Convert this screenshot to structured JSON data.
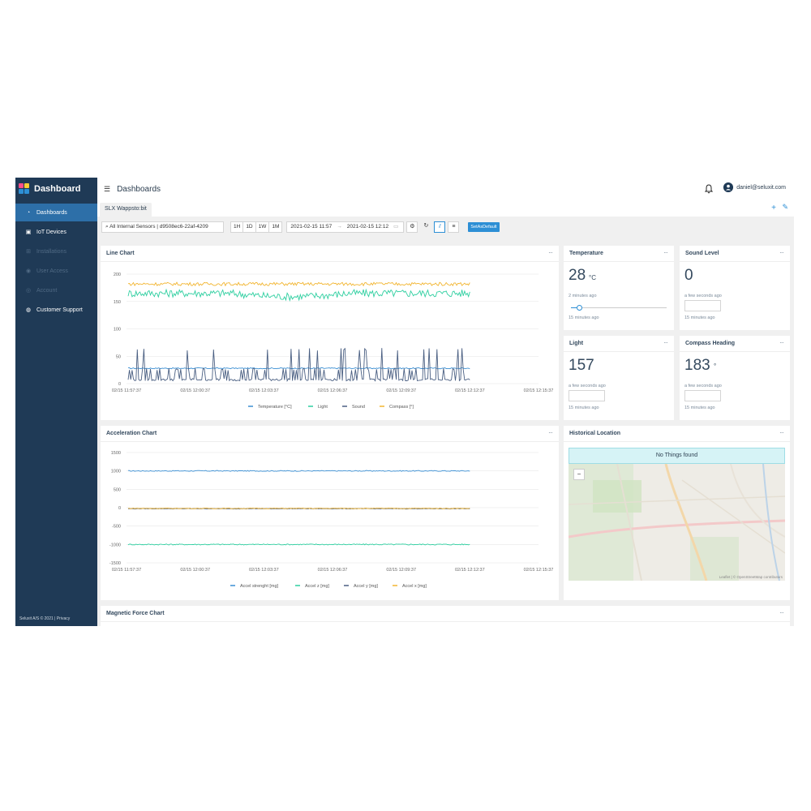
{
  "sidebar": {
    "title": "Dashboard",
    "items": [
      {
        "label": "Dashboards",
        "icon": "dashboard-icon",
        "state": "active"
      },
      {
        "label": "IoT Devices",
        "icon": "device-icon",
        "state": "normal"
      },
      {
        "label": "Installations",
        "icon": "grid-icon",
        "state": "disabled"
      },
      {
        "label": "User Access",
        "icon": "user-icon",
        "state": "disabled"
      },
      {
        "label": "Account",
        "icon": "account-icon",
        "state": "disabled"
      },
      {
        "label": "Customer Support",
        "icon": "globe-icon",
        "state": "normal"
      }
    ],
    "footer": "Seluxit A/S © 2021 | Privacy"
  },
  "header": {
    "title": "Dashboards",
    "user_email": "daniel@seluxit.com"
  },
  "tabs": [
    {
      "label": "SLX Wappsto:bit"
    }
  ],
  "toolbar": {
    "sensor_select": "All Internal Sensors | d9508ec6-22af-4209",
    "ranges": [
      "1H",
      "1D",
      "1W",
      "1M"
    ],
    "date_from": "2021-02-15 11:57",
    "date_arrow": "→",
    "date_to": "2021-02-15 12:12",
    "set_default": "SetAsDefault"
  },
  "colors": {
    "temperature": "#3b8fd3",
    "light": "#2ecfa0",
    "sound": "#4a5f82",
    "compass": "#f2b530",
    "accel_strength": "#3b8fd3",
    "accel_z": "#2ecfa0",
    "accel_y": "#4a5f82",
    "accel_x": "#f2b530"
  },
  "cards": {
    "line_chart": {
      "title": "Line Chart",
      "menu": "···"
    },
    "temperature": {
      "title": "Temperature",
      "menu": "···",
      "value": "28",
      "unit": "°C",
      "updated": "2 minutes ago",
      "range_label": "15 minutes ago"
    },
    "sound_level": {
      "title": "Sound Level",
      "menu": "···",
      "value": "0",
      "updated": "a few seconds ago",
      "range_label": "15 minutes ago"
    },
    "light": {
      "title": "Light",
      "menu": "···",
      "value": "157",
      "updated": "a few seconds ago",
      "range_label": "15 minutes ago"
    },
    "compass": {
      "title": "Compass Heading",
      "menu": "···",
      "value": "183",
      "unit": "°",
      "updated": "a few seconds ago",
      "range_label": "15 minutes ago"
    },
    "acceleration_chart": {
      "title": "Acceleration Chart",
      "menu": "···"
    },
    "historical_location": {
      "title": "Historical Location",
      "menu": "···",
      "notice": "No Things found",
      "attribution": "Leaflet | © OpenStreetMap contributors",
      "zoom_out": "−"
    },
    "magnetic_chart": {
      "title": "Magnetic Force Chart",
      "menu": "···"
    }
  },
  "chart_data": [
    {
      "type": "line",
      "x_ticks": [
        "02/15 11:57:37",
        "02/15 12:00:37",
        "02/15 12:03:37",
        "02/15 12:06:37",
        "02/15 12:09:37",
        "02/15 12:12:37",
        "02/15 12:15:37"
      ],
      "y_ticks": [
        0,
        50,
        100,
        150,
        200
      ],
      "ylim": [
        0,
        200
      ],
      "series": [
        {
          "name": "Temperature [°C]",
          "level": 28
        },
        {
          "name": "Light",
          "level": 165
        },
        {
          "name": "Sound",
          "level": 10
        },
        {
          "name": "Compass [°]",
          "level": 182
        }
      ]
    },
    {
      "type": "line",
      "x_ticks": [
        "02/15 11:57:37",
        "02/15 12:00:37",
        "02/15 12:03:37",
        "02/15 12:06:37",
        "02/15 12:09:37",
        "02/15 12:12:37",
        "02/15 12:15:37"
      ],
      "y_ticks": [
        1500,
        1000,
        500,
        0,
        -500,
        -1000,
        -1500
      ],
      "ylim": [
        -1500,
        1500
      ],
      "series": [
        {
          "name": "Accel strenght [mg]",
          "level": 1000
        },
        {
          "name": "Accel z [mg]",
          "level": -1000
        },
        {
          "name": "Accel y [mg]",
          "level": -30
        },
        {
          "name": "Accel x [mg]",
          "level": -20
        }
      ]
    }
  ]
}
